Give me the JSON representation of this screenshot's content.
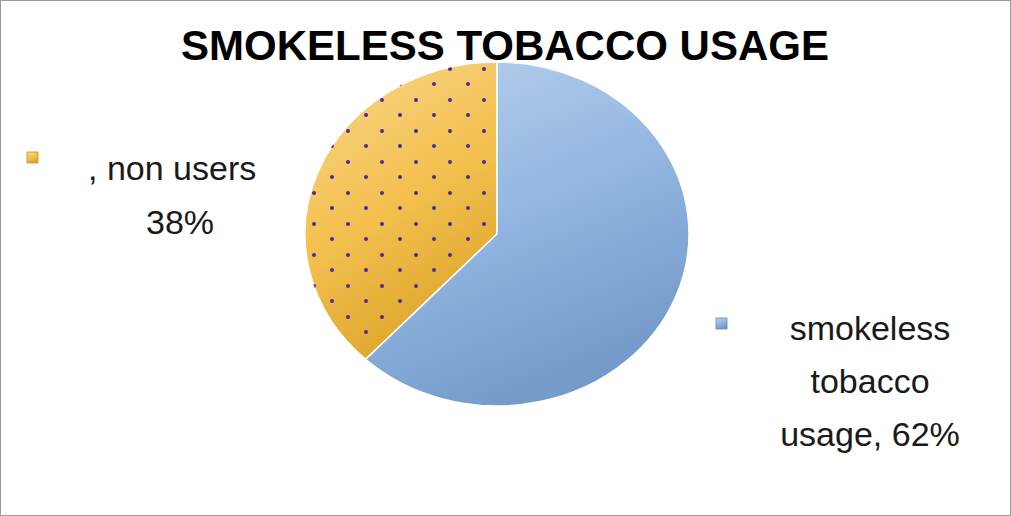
{
  "chart_data": {
    "type": "pie",
    "title": "SMOKELESS TOBACCO USAGE",
    "categories": [
      ", non users",
      "smokeless tobacco usage,"
    ],
    "values": [
      38,
      62
    ],
    "value_labels": [
      "38%",
      "62%"
    ],
    "colors": [
      "#f2b631",
      "#7fa9dc"
    ],
    "data_labels": true
  }
}
